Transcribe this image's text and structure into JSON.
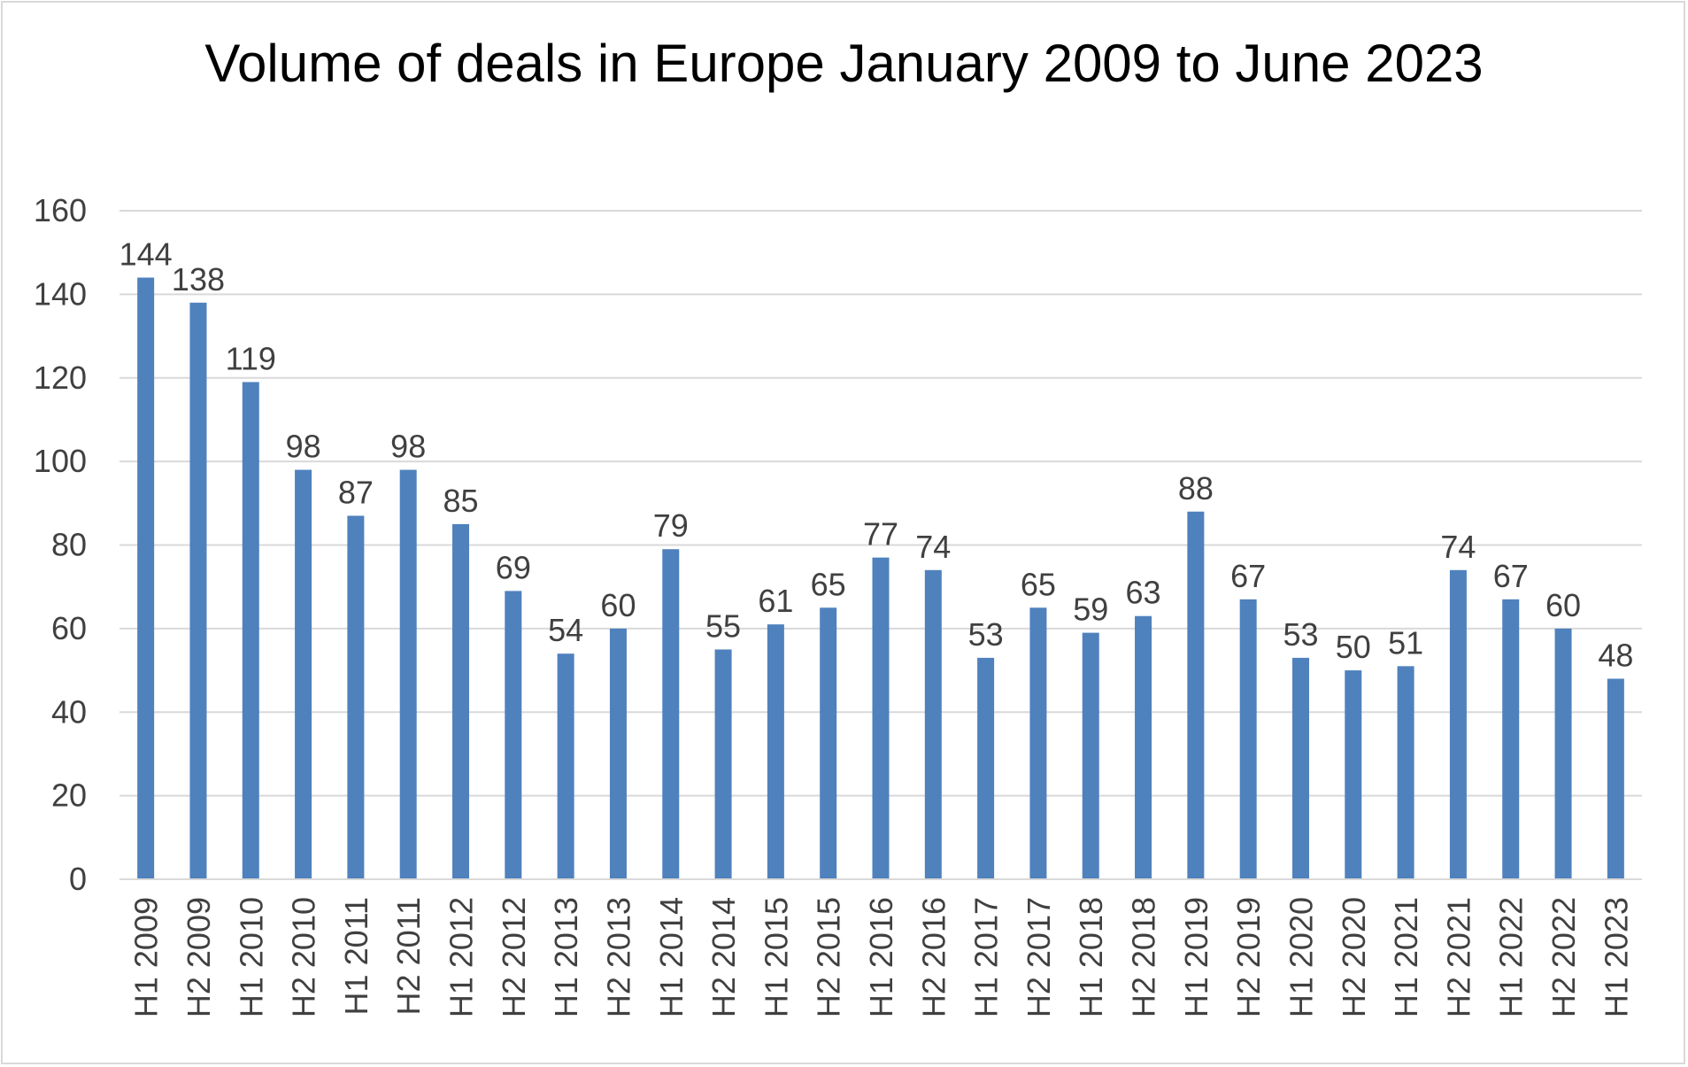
{
  "chart_data": {
    "type": "bar",
    "title": "Volume of deals in Europe January 2009 to June 2023",
    "xlabel": "",
    "ylabel": "",
    "ylim": [
      0,
      160
    ],
    "yticks": [
      0,
      20,
      40,
      60,
      80,
      100,
      120,
      140,
      160
    ],
    "grid": true,
    "legend": "none",
    "categories": [
      "H1 2009",
      "H2 2009",
      "H1 2010",
      "H2 2010",
      "H1 2011",
      "H2 2011",
      "H1 2012",
      "H2 2012",
      "H1 2013",
      "H2 2013",
      "H1 2014",
      "H2 2014",
      "H1 2015",
      "H2 2015",
      "H1 2016",
      "H2 2016",
      "H1 2017",
      "H2 2017",
      "H1 2018",
      "H2 2018",
      "H1 2019",
      "H2 2019",
      "H1 2020",
      "H2 2020",
      "H1 2021",
      "H2 2021",
      "H1 2022",
      "H2 2022",
      "H1 2023"
    ],
    "values": [
      144,
      138,
      119,
      98,
      87,
      98,
      85,
      69,
      54,
      60,
      79,
      55,
      61,
      65,
      77,
      74,
      53,
      65,
      59,
      63,
      88,
      67,
      53,
      50,
      51,
      74,
      67,
      60,
      48
    ],
    "colors": {
      "bar": "#4f81bd",
      "grid": "#d9d9d9",
      "text": "#404040"
    }
  }
}
